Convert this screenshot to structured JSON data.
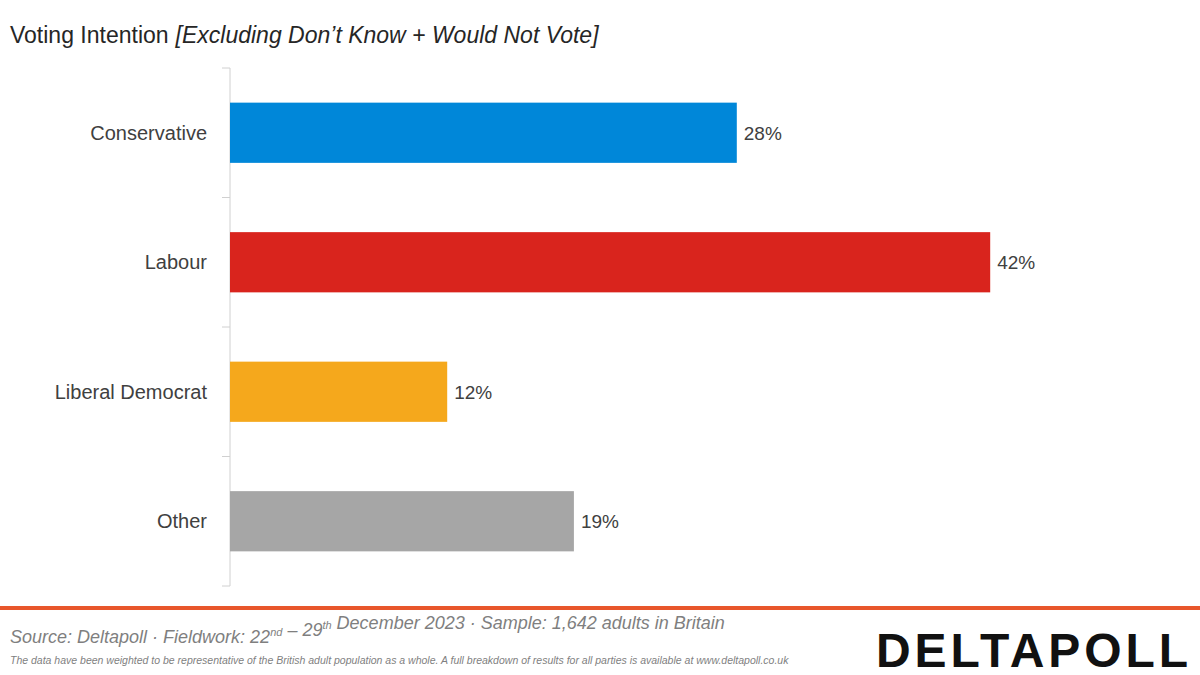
{
  "chart_data": {
    "type": "bar",
    "orientation": "horizontal",
    "title": "Voting Intention",
    "subtitle": "[Excluding Don’t Know + Would Not Vote]",
    "categories": [
      "Conservative",
      "Labour",
      "Liberal Democrat",
      "Other"
    ],
    "values": [
      28,
      42,
      12,
      19
    ],
    "value_labels": [
      "28%",
      "42%",
      "12%",
      "19%"
    ],
    "colors": [
      "#0087d9",
      "#d9241d",
      "#f5a81c",
      "#a6a6a6"
    ],
    "xlim": [
      0,
      50
    ],
    "data_labels": true,
    "tick_labels": "y"
  },
  "footer": {
    "source": "Source: Deltapoll · Fieldwork: 22nd – 29th December 2023 · Sample: 1,642 adults in Britain",
    "note": "The data have been weighted to be representative of the British adult population as a whole. A full breakdown of results for all parties is available at www.deltapoll.co.uk",
    "logo": "DELTAPOLL"
  }
}
